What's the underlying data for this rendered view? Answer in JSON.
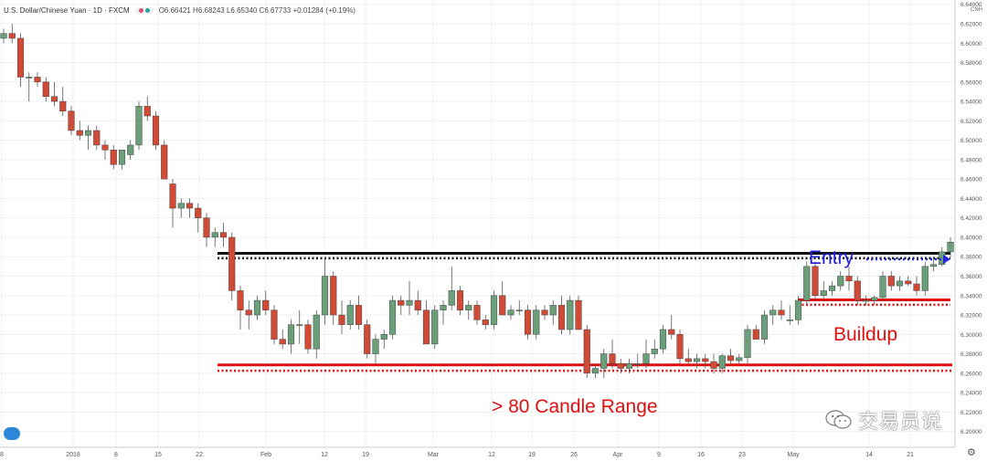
{
  "legend": {
    "title": "U.S. Dollar/Chinese Yuan · 1D · FXCM",
    "ohlc": "O6.66421 H6.68243 L6.65340 C6.67733 +0.01284 (+0.19%)",
    "dot_colors": [
      "#e04b7a",
      "#26a69a"
    ]
  },
  "price_axis": {
    "min": 6.19,
    "max": 6.65,
    "ticks": [
      "6.64000",
      "6.62000",
      "6.60000",
      "6.58000",
      "6.56000",
      "6.54000",
      "6.52000",
      "6.50000",
      "6.48000",
      "6.46000",
      "6.44000",
      "6.42000",
      "6.40000",
      "6.38000",
      "6.36000",
      "6.34000",
      "6.32000",
      "6.30000",
      "6.28000",
      "6.26000",
      "6.24000",
      "6.22000",
      "6.20000"
    ],
    "currency": "CNH"
  },
  "time_axis": {
    "labels": [
      "8",
      "2018",
      "8",
      "15",
      "22",
      "Feb",
      "12",
      "19",
      "Mar",
      "12",
      "19",
      "26",
      "Apr",
      "9",
      "16",
      "23",
      "May",
      "14",
      "21"
    ]
  },
  "watermark": "交易员说",
  "settings_icon": "gear-icon",
  "chart_data": {
    "type": "candlestick",
    "title": "U.S. Dollar/Chinese Yuan · 1D · FXCM",
    "symbol": "USDCNH",
    "interval": "1D",
    "bull_color": "#6a9f7a",
    "bear_color": "#d14a36",
    "ylim": [
      6.19,
      6.65
    ],
    "candles": [
      {
        "o": 6.605,
        "h": 6.615,
        "l": 6.6,
        "c": 6.61
      },
      {
        "o": 6.61,
        "h": 6.62,
        "l": 6.6,
        "c": 6.605
      },
      {
        "o": 6.605,
        "h": 6.61,
        "l": 6.555,
        "c": 6.565
      },
      {
        "o": 6.565,
        "h": 6.57,
        "l": 6.54,
        "c": 6.565
      },
      {
        "o": 6.565,
        "h": 6.57,
        "l": 6.555,
        "c": 6.56
      },
      {
        "o": 6.56,
        "h": 6.565,
        "l": 6.54,
        "c": 6.545
      },
      {
        "o": 6.545,
        "h": 6.56,
        "l": 6.535,
        "c": 6.54
      },
      {
        "o": 6.54,
        "h": 6.555,
        "l": 6.525,
        "c": 6.53
      },
      {
        "o": 6.53,
        "h": 6.535,
        "l": 6.505,
        "c": 6.51
      },
      {
        "o": 6.51,
        "h": 6.52,
        "l": 6.5,
        "c": 6.505
      },
      {
        "o": 6.505,
        "h": 6.515,
        "l": 6.49,
        "c": 6.51
      },
      {
        "o": 6.51,
        "h": 6.515,
        "l": 6.49,
        "c": 6.495
      },
      {
        "o": 6.495,
        "h": 6.5,
        "l": 6.48,
        "c": 6.49
      },
      {
        "o": 6.49,
        "h": 6.495,
        "l": 6.47,
        "c": 6.475
      },
      {
        "o": 6.475,
        "h": 6.49,
        "l": 6.47,
        "c": 6.49
      },
      {
        "o": 6.485,
        "h": 6.5,
        "l": 6.48,
        "c": 6.495
      },
      {
        "o": 6.495,
        "h": 6.54,
        "l": 6.49,
        "c": 6.535
      },
      {
        "o": 6.535,
        "h": 6.545,
        "l": 6.52,
        "c": 6.525
      },
      {
        "o": 6.525,
        "h": 6.53,
        "l": 6.49,
        "c": 6.495
      },
      {
        "o": 6.495,
        "h": 6.5,
        "l": 6.46,
        "c": 6.46
      },
      {
        "o": 6.455,
        "h": 6.46,
        "l": 6.41,
        "c": 6.43
      },
      {
        "o": 6.43,
        "h": 6.44,
        "l": 6.42,
        "c": 6.435
      },
      {
        "o": 6.435,
        "h": 6.44,
        "l": 6.42,
        "c": 6.43
      },
      {
        "o": 6.43,
        "h": 6.435,
        "l": 6.405,
        "c": 6.42
      },
      {
        "o": 6.42,
        "h": 6.425,
        "l": 6.39,
        "c": 6.4
      },
      {
        "o": 6.4,
        "h": 6.41,
        "l": 6.39,
        "c": 6.405
      },
      {
        "o": 6.405,
        "h": 6.415,
        "l": 6.39,
        "c": 6.4
      },
      {
        "o": 6.4,
        "h": 6.405,
        "l": 6.335,
        "c": 6.345
      },
      {
        "o": 6.345,
        "h": 6.35,
        "l": 6.305,
        "c": 6.325
      },
      {
        "o": 6.325,
        "h": 6.335,
        "l": 6.305,
        "c": 6.32
      },
      {
        "o": 6.32,
        "h": 6.34,
        "l": 6.315,
        "c": 6.335
      },
      {
        "o": 6.335,
        "h": 6.345,
        "l": 6.32,
        "c": 6.325
      },
      {
        "o": 6.325,
        "h": 6.33,
        "l": 6.29,
        "c": 6.295
      },
      {
        "o": 6.295,
        "h": 6.305,
        "l": 6.285,
        "c": 6.29
      },
      {
        "o": 6.29,
        "h": 6.315,
        "l": 6.28,
        "c": 6.31
      },
      {
        "o": 6.31,
        "h": 6.325,
        "l": 6.29,
        "c": 6.31
      },
      {
        "o": 6.31,
        "h": 6.315,
        "l": 6.28,
        "c": 6.285
      },
      {
        "o": 6.285,
        "h": 6.325,
        "l": 6.275,
        "c": 6.32
      },
      {
        "o": 6.32,
        "h": 6.38,
        "l": 6.31,
        "c": 6.36
      },
      {
        "o": 6.36,
        "h": 6.365,
        "l": 6.31,
        "c": 6.32
      },
      {
        "o": 6.32,
        "h": 6.335,
        "l": 6.3,
        "c": 6.31
      },
      {
        "o": 6.31,
        "h": 6.335,
        "l": 6.305,
        "c": 6.33
      },
      {
        "o": 6.33,
        "h": 6.34,
        "l": 6.305,
        "c": 6.31
      },
      {
        "o": 6.31,
        "h": 6.315,
        "l": 6.275,
        "c": 6.28
      },
      {
        "o": 6.28,
        "h": 6.3,
        "l": 6.27,
        "c": 6.295
      },
      {
        "o": 6.295,
        "h": 6.305,
        "l": 6.285,
        "c": 6.3
      },
      {
        "o": 6.3,
        "h": 6.34,
        "l": 6.295,
        "c": 6.335
      },
      {
        "o": 6.335,
        "h": 6.34,
        "l": 6.32,
        "c": 6.33
      },
      {
        "o": 6.33,
        "h": 6.355,
        "l": 6.32,
        "c": 6.335
      },
      {
        "o": 6.335,
        "h": 6.345,
        "l": 6.32,
        "c": 6.325
      },
      {
        "o": 6.325,
        "h": 6.335,
        "l": 6.29,
        "c": 6.29
      },
      {
        "o": 6.29,
        "h": 6.33,
        "l": 6.285,
        "c": 6.325
      },
      {
        "o": 6.325,
        "h": 6.335,
        "l": 6.31,
        "c": 6.33
      },
      {
        "o": 6.33,
        "h": 6.37,
        "l": 6.325,
        "c": 6.345
      },
      {
        "o": 6.345,
        "h": 6.35,
        "l": 6.32,
        "c": 6.325
      },
      {
        "o": 6.325,
        "h": 6.335,
        "l": 6.315,
        "c": 6.33
      },
      {
        "o": 6.33,
        "h": 6.335,
        "l": 6.31,
        "c": 6.315
      },
      {
        "o": 6.315,
        "h": 6.32,
        "l": 6.305,
        "c": 6.31
      },
      {
        "o": 6.31,
        "h": 6.345,
        "l": 6.305,
        "c": 6.34
      },
      {
        "o": 6.34,
        "h": 6.355,
        "l": 6.32,
        "c": 6.32
      },
      {
        "o": 6.32,
        "h": 6.33,
        "l": 6.315,
        "c": 6.325
      },
      {
        "o": 6.325,
        "h": 6.335,
        "l": 6.32,
        "c": 6.325
      },
      {
        "o": 6.325,
        "h": 6.33,
        "l": 6.295,
        "c": 6.3
      },
      {
        "o": 6.3,
        "h": 6.33,
        "l": 6.295,
        "c": 6.325
      },
      {
        "o": 6.325,
        "h": 6.33,
        "l": 6.315,
        "c": 6.32
      },
      {
        "o": 6.32,
        "h": 6.335,
        "l": 6.31,
        "c": 6.33
      },
      {
        "o": 6.33,
        "h": 6.34,
        "l": 6.3,
        "c": 6.305
      },
      {
        "o": 6.305,
        "h": 6.34,
        "l": 6.3,
        "c": 6.335
      },
      {
        "o": 6.335,
        "h": 6.34,
        "l": 6.305,
        "c": 6.305
      },
      {
        "o": 6.305,
        "h": 6.31,
        "l": 6.255,
        "c": 6.26
      },
      {
        "o": 6.26,
        "h": 6.27,
        "l": 6.255,
        "c": 6.265
      },
      {
        "o": 6.265,
        "h": 6.285,
        "l": 6.255,
        "c": 6.28
      },
      {
        "o": 6.28,
        "h": 6.295,
        "l": 6.265,
        "c": 6.27
      },
      {
        "o": 6.27,
        "h": 6.275,
        "l": 6.26,
        "c": 6.265
      },
      {
        "o": 6.265,
        "h": 6.275,
        "l": 6.26,
        "c": 6.27
      },
      {
        "o": 6.27,
        "h": 6.28,
        "l": 6.265,
        "c": 6.27
      },
      {
        "o": 6.27,
        "h": 6.295,
        "l": 6.265,
        "c": 6.28
      },
      {
        "o": 6.28,
        "h": 6.295,
        "l": 6.275,
        "c": 6.285
      },
      {
        "o": 6.285,
        "h": 6.31,
        "l": 6.28,
        "c": 6.305
      },
      {
        "o": 6.305,
        "h": 6.32,
        "l": 6.295,
        "c": 6.3
      },
      {
        "o": 6.3,
        "h": 6.305,
        "l": 6.27,
        "c": 6.275
      },
      {
        "o": 6.275,
        "h": 6.285,
        "l": 6.27,
        "c": 6.272
      },
      {
        "o": 6.272,
        "h": 6.28,
        "l": 6.265,
        "c": 6.275
      },
      {
        "o": 6.275,
        "h": 6.28,
        "l": 6.265,
        "c": 6.272
      },
      {
        "o": 6.272,
        "h": 6.28,
        "l": 6.26,
        "c": 6.265
      },
      {
        "o": 6.265,
        "h": 6.28,
        "l": 6.26,
        "c": 6.278
      },
      {
        "o": 6.278,
        "h": 6.285,
        "l": 6.27,
        "c": 6.273
      },
      {
        "o": 6.273,
        "h": 6.28,
        "l": 6.27,
        "c": 6.276
      },
      {
        "o": 6.276,
        "h": 6.31,
        "l": 6.27,
        "c": 6.305
      },
      {
        "o": 6.305,
        "h": 6.31,
        "l": 6.295,
        "c": 6.295
      },
      {
        "o": 6.295,
        "h": 6.325,
        "l": 6.29,
        "c": 6.32
      },
      {
        "o": 6.32,
        "h": 6.33,
        "l": 6.31,
        "c": 6.325
      },
      {
        "o": 6.325,
        "h": 6.335,
        "l": 6.315,
        "c": 6.32
      },
      {
        "o": 6.315,
        "h": 6.33,
        "l": 6.31,
        "c": 6.315
      },
      {
        "o": 6.315,
        "h": 6.34,
        "l": 6.31,
        "c": 6.335
      },
      {
        "o": 6.335,
        "h": 6.375,
        "l": 6.33,
        "c": 6.37
      },
      {
        "o": 6.37,
        "h": 6.375,
        "l": 6.335,
        "c": 6.34
      },
      {
        "o": 6.34,
        "h": 6.355,
        "l": 6.335,
        "c": 6.345
      },
      {
        "o": 6.345,
        "h": 6.355,
        "l": 6.34,
        "c": 6.35
      },
      {
        "o": 6.35,
        "h": 6.365,
        "l": 6.345,
        "c": 6.36
      },
      {
        "o": 6.36,
        "h": 6.37,
        "l": 6.345,
        "c": 6.355
      },
      {
        "o": 6.355,
        "h": 6.36,
        "l": 6.33,
        "c": 6.335
      },
      {
        "o": 6.335,
        "h": 6.34,
        "l": 6.33,
        "c": 6.335
      },
      {
        "o": 6.335,
        "h": 6.34,
        "l": 6.33,
        "c": 6.338
      },
      {
        "o": 6.338,
        "h": 6.365,
        "l": 6.335,
        "c": 6.36
      },
      {
        "o": 6.36,
        "h": 6.365,
        "l": 6.345,
        "c": 6.35
      },
      {
        "o": 6.35,
        "h": 6.36,
        "l": 6.345,
        "c": 6.355
      },
      {
        "o": 6.355,
        "h": 6.36,
        "l": 6.35,
        "c": 6.352
      },
      {
        "o": 6.352,
        "h": 6.36,
        "l": 6.34,
        "c": 6.345
      },
      {
        "o": 6.345,
        "h": 6.375,
        "l": 6.34,
        "c": 6.37
      },
      {
        "o": 6.37,
        "h": 6.38,
        "l": 6.365,
        "c": 6.372
      },
      {
        "o": 6.372,
        "h": 6.39,
        "l": 6.37,
        "c": 6.385
      },
      {
        "o": 6.385,
        "h": 6.4,
        "l": 6.38,
        "c": 6.395
      }
    ],
    "annotations": [
      {
        "type": "hline",
        "label": "",
        "value": 6.3835,
        "color": "#111111",
        "style": "solid"
      },
      {
        "type": "hline",
        "label": "",
        "value": 6.3785,
        "color": "#111111",
        "style": "dotted"
      },
      {
        "type": "hline",
        "label": "",
        "value": 6.3355,
        "color": "#e01010",
        "style": "solid"
      },
      {
        "type": "hline",
        "label": "",
        "value": 6.3305,
        "color": "#e01010",
        "style": "dotted"
      },
      {
        "type": "hline",
        "label": "",
        "value": 6.2685,
        "color": "#e01010",
        "style": "solid"
      },
      {
        "type": "hline",
        "label": "",
        "value": 6.2625,
        "color": "#e01010",
        "style": "dotted"
      }
    ],
    "text_labels": {
      "entry": "Entry",
      "buildup": "Buildup",
      "range": "> 80 Candle Range"
    },
    "label_colors": {
      "entry": "#2222dd",
      "buildup": "#e01010",
      "range": "#e01010"
    }
  }
}
